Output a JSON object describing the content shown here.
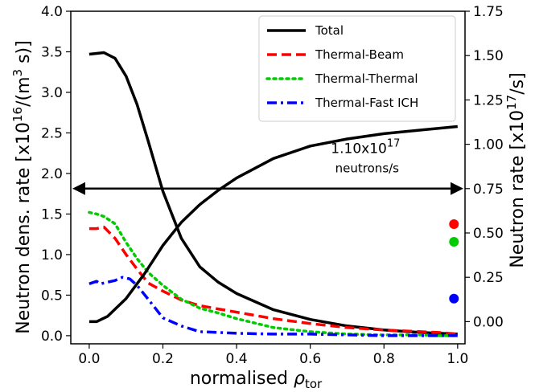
{
  "chart_data": {
    "type": "line",
    "xlabel_main": "normalised ",
    "xlabel_rho": "ρ",
    "xlabel_sub": "tor",
    "ylabel_left": "Neutron dens. rate [x10",
    "ylabel_left_sup": "16",
    "ylabel_left_mid": "/(m",
    "ylabel_left_sup2": "3",
    "ylabel_left_end": " s)]",
    "ylabel_right": "Neutron rate [x10",
    "ylabel_right_sup": "17",
    "ylabel_right_end": "/s]",
    "xlim": [
      -0.05,
      1.02
    ],
    "ylim_left": [
      -0.1,
      4.0
    ],
    "ylim_right": [
      -0.125,
      1.75
    ],
    "x_ticks": [
      0.0,
      0.2,
      0.4,
      0.6,
      0.8,
      1.0
    ],
    "x_tick_labels": [
      "0.0",
      "0.2",
      "0.4",
      "0.6",
      "0.8",
      "1.0"
    ],
    "y_ticks_left": [
      0.0,
      0.5,
      1.0,
      1.5,
      2.0,
      2.5,
      3.0,
      3.5,
      4.0
    ],
    "y_tick_labels_left": [
      "0.0",
      "0.5",
      "1.0",
      "1.5",
      "2.0",
      "2.5",
      "3.0",
      "3.5",
      "4.0"
    ],
    "y_ticks_right": [
      0.0,
      0.25,
      0.5,
      0.75,
      1.0,
      1.25,
      1.5,
      1.75
    ],
    "y_tick_labels_right": [
      "0.00",
      "0.25",
      "0.50",
      "0.75",
      "1.00",
      "1.25",
      "1.50",
      "1.75"
    ],
    "legend_position": "top-right",
    "series": [
      {
        "name": "Total",
        "axis": "left",
        "color": "#000000",
        "style": "solid",
        "x": [
          0.0,
          0.02,
          0.04,
          0.07,
          0.1,
          0.13,
          0.16,
          0.2,
          0.25,
          0.3,
          0.35,
          0.4,
          0.5,
          0.6,
          0.7,
          0.8,
          0.9,
          0.95,
          1.0
        ],
        "y": [
          3.47,
          3.48,
          3.49,
          3.42,
          3.2,
          2.85,
          2.4,
          1.78,
          1.2,
          0.85,
          0.66,
          0.52,
          0.32,
          0.2,
          0.12,
          0.07,
          0.04,
          0.03,
          0.02
        ]
      },
      {
        "name": "Thermal-Beam",
        "axis": "left",
        "color": "#ff0000",
        "style": "dashed",
        "x": [
          0.0,
          0.02,
          0.04,
          0.07,
          0.1,
          0.13,
          0.16,
          0.2,
          0.25,
          0.3,
          0.35,
          0.4,
          0.5,
          0.6,
          0.7,
          0.8,
          0.9,
          0.95,
          1.0
        ],
        "y": [
          1.32,
          1.32,
          1.34,
          1.2,
          1.0,
          0.82,
          0.65,
          0.55,
          0.44,
          0.37,
          0.33,
          0.29,
          0.21,
          0.15,
          0.1,
          0.07,
          0.05,
          0.04,
          0.02
        ]
      },
      {
        "name": "Thermal-Thermal",
        "axis": "left",
        "color": "#00cc00",
        "style": "dotted",
        "x": [
          0.0,
          0.02,
          0.04,
          0.07,
          0.1,
          0.13,
          0.16,
          0.2,
          0.25,
          0.3,
          0.35,
          0.4,
          0.5,
          0.6,
          0.7,
          0.8,
          0.9,
          0.95,
          1.0
        ],
        "y": [
          1.52,
          1.5,
          1.47,
          1.38,
          1.15,
          0.95,
          0.78,
          0.62,
          0.45,
          0.34,
          0.28,
          0.21,
          0.1,
          0.05,
          0.02,
          0.01,
          0.01,
          0.0,
          0.0
        ]
      },
      {
        "name": "Thermal-Fast ICH",
        "axis": "left",
        "color": "#0000ff",
        "style": "dashdot",
        "x": [
          0.0,
          0.02,
          0.03,
          0.05,
          0.07,
          0.09,
          0.11,
          0.13,
          0.16,
          0.2,
          0.25,
          0.3,
          0.35,
          0.4,
          0.5,
          0.6,
          0.7,
          0.8,
          0.9,
          1.0
        ],
        "y": [
          0.64,
          0.67,
          0.64,
          0.66,
          0.68,
          0.72,
          0.7,
          0.62,
          0.45,
          0.22,
          0.12,
          0.05,
          0.04,
          0.03,
          0.02,
          0.02,
          0.01,
          0.0,
          0.0,
          0.0
        ]
      },
      {
        "name": "Cumulative neutron rate",
        "axis": "right",
        "color": "#000000",
        "style": "solid",
        "legend": false,
        "x": [
          0.0,
          0.02,
          0.05,
          0.1,
          0.15,
          0.2,
          0.25,
          0.3,
          0.35,
          0.4,
          0.5,
          0.6,
          0.7,
          0.8,
          0.9,
          1.0
        ],
        "y": [
          0.0,
          0.0,
          0.03,
          0.13,
          0.27,
          0.43,
          0.56,
          0.66,
          0.74,
          0.81,
          0.92,
          0.99,
          1.03,
          1.06,
          1.08,
          1.1
        ]
      }
    ],
    "markers": [
      {
        "series": "Thermal-Beam",
        "x": 0.99,
        "y_right": 0.55,
        "color": "#ff0000"
      },
      {
        "series": "Thermal-Thermal",
        "x": 0.99,
        "y_right": 0.45,
        "color": "#00cc00"
      },
      {
        "series": "Thermal-Fast ICH",
        "x": 0.99,
        "y_right": 0.13,
        "color": "#0000ff"
      }
    ],
    "arrow": {
      "y_right": 0.75
    },
    "annotation": {
      "value": "1.10x10",
      "sup": "17",
      "unit": "neutrons/s",
      "x": 0.75,
      "y_right": 0.95
    }
  }
}
